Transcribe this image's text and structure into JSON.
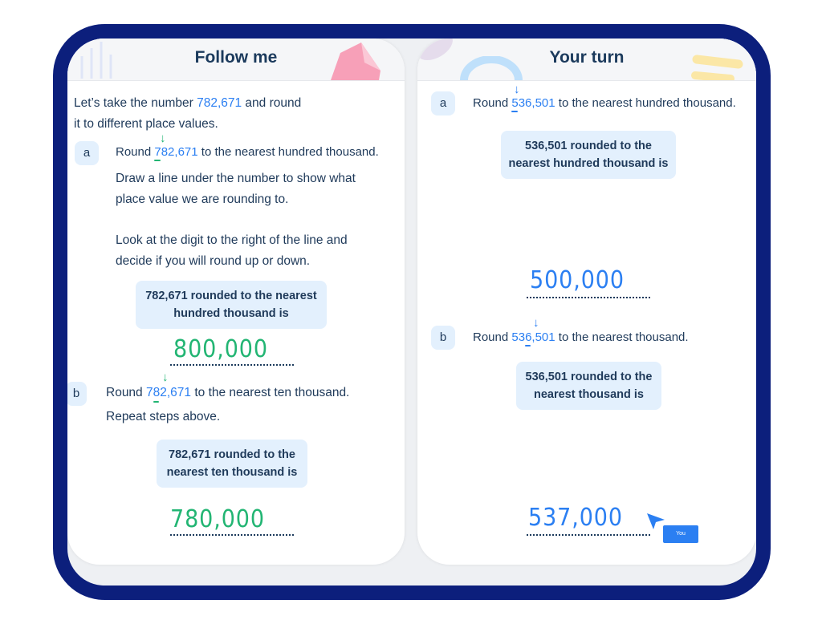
{
  "follow": {
    "title": "Follow me",
    "intro_1": "Let’s take the number ",
    "intro_num": "782,671",
    "intro_2": " and round",
    "intro_3": "it to different place values.",
    "a": {
      "tag": "a",
      "pre": "Round ",
      "digit": "7",
      "rest": "82,671",
      "post": " to the nearest hundred thousand.",
      "step1a": "Draw a line under the number to show what",
      "step1b": "place value we are rounding to.",
      "step2a": "Look at the digit to the right of the line and",
      "step2b": "decide if you will round up or down.",
      "box1": "782,671 rounded to the nearest",
      "box2": "hundred thousand is",
      "answer": "800,000"
    },
    "b": {
      "tag": "b",
      "pre": "Round ",
      "d1": "7",
      "digit": "8",
      "rest": "2,671",
      "post": " to the nearest ten thousand.",
      "step": "Repeat steps above.",
      "box1": "782,671 rounded to the",
      "box2": "nearest ten thousand is",
      "answer": "780,000"
    }
  },
  "turn": {
    "title": "Your turn",
    "a": {
      "tag": "a",
      "pre": "Round ",
      "digit": "5",
      "rest": "36,501",
      "post": " to the nearest hundred thousand.",
      "box1": "536,501 rounded to the",
      "box2": "nearest hundred thousand is",
      "answer": "500,000"
    },
    "b": {
      "tag": "b",
      "pre": "Round ",
      "d1": "53",
      "digit": "6",
      "rest": ",501",
      "post": " to the nearest thousand.",
      "box1": "536,501 rounded to the",
      "box2": "nearest thousand is",
      "answer": "537,000"
    },
    "cursor_label": "You"
  },
  "colors": {
    "frame": "#0c1f7c",
    "accent": "#2b7ff2",
    "green": "#22b573",
    "bubble": "#e3f0fd"
  }
}
